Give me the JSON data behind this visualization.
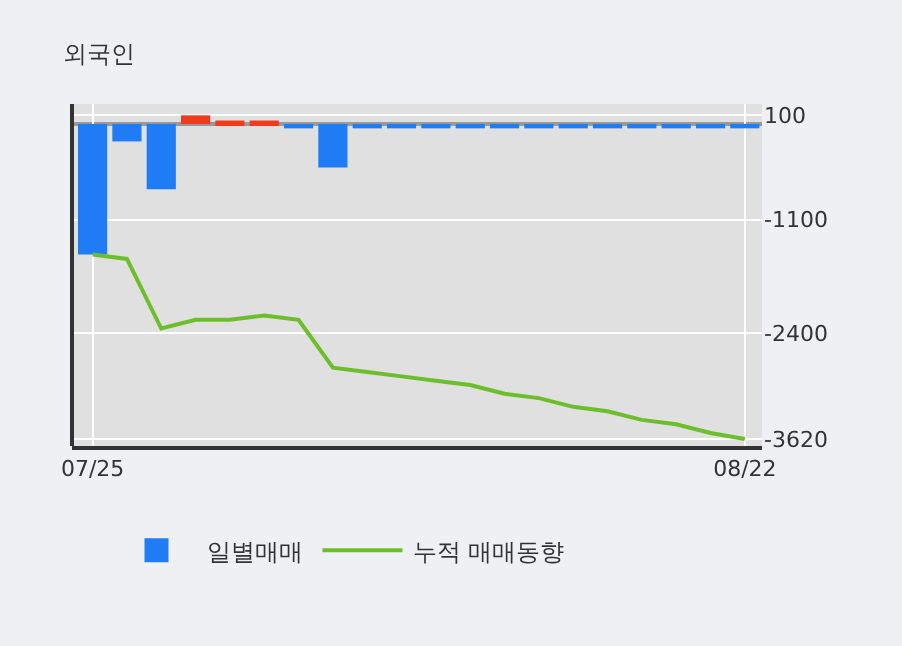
{
  "chart_data": {
    "type": "bar",
    "title": "외국인",
    "categories": [
      "07/25",
      null,
      null,
      null,
      null,
      null,
      null,
      null,
      null,
      null,
      null,
      null,
      null,
      null,
      null,
      null,
      null,
      null,
      null,
      "08/22"
    ],
    "series": [
      {
        "name": "일별매매",
        "colors": [
          "#1f7cf5",
          "#1f7cf5",
          "#1f7cf5",
          "#f03a1e",
          "#f03a1e",
          "#f03a1e",
          "#1f7cf5",
          "#1f7cf5",
          "#1f7cf5",
          "#1f7cf5",
          "#1f7cf5",
          "#1f7cf5",
          "#1f7cf5",
          "#1f7cf5",
          "#1f7cf5",
          "#1f7cf5",
          "#1f7cf5",
          "#1f7cf5",
          "#1f7cf5",
          "#1f7cf5"
        ],
        "values": [
          -1500,
          -200,
          -750,
          100,
          40,
          40,
          -50,
          -500,
          -50,
          -50,
          -50,
          -50,
          -50,
          -50,
          -50,
          -50,
          -50,
          -50,
          -50,
          -50
        ]
      },
      {
        "name": "누적 매매동향",
        "type": "line",
        "color": "#6cbf2a",
        "values": [
          -1500,
          -1550,
          -2350,
          -2250,
          -2250,
          -2200,
          -2250,
          -2800,
          -2850,
          -2900,
          -2950,
          -3000,
          -3100,
          -3150,
          -3250,
          -3300,
          -3400,
          -3450,
          -3550,
          -3620
        ]
      }
    ],
    "ylim": [
      -3700,
      230
    ],
    "yticks": [
      100,
      -1100,
      -2400,
      -3620
    ],
    "ref_lines": [
      {
        "axis": "y",
        "value": 0,
        "color": "#999999"
      }
    ],
    "grid": true,
    "legend": "bottom",
    "marker": "none",
    "line_style": "solid"
  }
}
